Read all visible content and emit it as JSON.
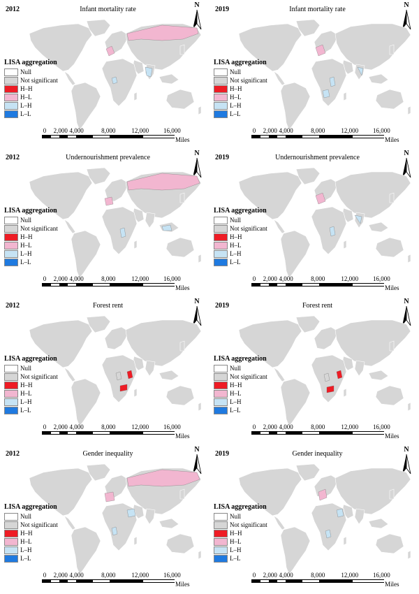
{
  "legend": {
    "title": "LISA aggregation",
    "items": [
      {
        "label": "Null",
        "color": "#ffffff"
      },
      {
        "label": "Not significant",
        "color": "#d6d6d6"
      },
      {
        "label": "H–H",
        "color": "#ee1c25"
      },
      {
        "label": "H–L",
        "color": "#f2b6d0"
      },
      {
        "label": "L–H",
        "color": "#c6e3f4"
      },
      {
        "label": "L–L",
        "color": "#1f7ae0"
      }
    ]
  },
  "north_label": "N",
  "scale": {
    "ticks": [
      "0",
      "2,000",
      "4,000",
      "8,000",
      "12,000",
      "16,000"
    ],
    "unit": "Miles"
  },
  "panels": [
    {
      "year": "2012",
      "title": "Infant mortality rate"
    },
    {
      "year": "2019",
      "title": "Infant mortality rate"
    },
    {
      "year": "2012",
      "title": "Undernourishment prevalence"
    },
    {
      "year": "2019",
      "title": "Undernourishment prevalence"
    },
    {
      "year": "2012",
      "title": "Forest rent"
    },
    {
      "year": "2019",
      "title": "Forest rent"
    },
    {
      "year": "2012",
      "title": "Gender inequality"
    },
    {
      "year": "2019",
      "title": "Gender inequality"
    }
  ]
}
